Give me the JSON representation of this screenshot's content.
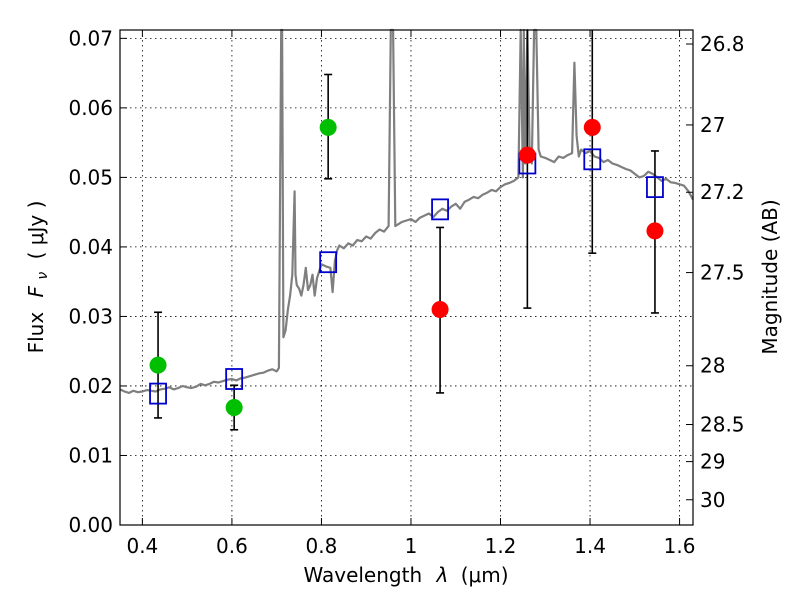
{
  "chart_data": {
    "type": "scatter",
    "xlabel": "Wavelength",
    "xlabel_symbol": "λ",
    "xlabel_unit": "(μm)",
    "ylabel": "Flux",
    "ylabel_symbol": "F",
    "ylabel_symbol_sub": "ν",
    "ylabel_unit": "( μJy )",
    "y2label": "Magnitude (AB)",
    "xlim": [
      0.35,
      1.63
    ],
    "ylim": [
      0.0,
      0.0712
    ],
    "grid": true,
    "x_ticks": [
      {
        "value": 0.4,
        "label": "0.4"
      },
      {
        "value": 0.6,
        "label": "0.6"
      },
      {
        "value": 0.8,
        "label": "0.8"
      },
      {
        "value": 1.0,
        "label": "1"
      },
      {
        "value": 1.2,
        "label": "1.2"
      },
      {
        "value": 1.4,
        "label": "1.4"
      },
      {
        "value": 1.6,
        "label": "1.6"
      }
    ],
    "y_ticks": [
      {
        "value": 0.0,
        "label": "0.00"
      },
      {
        "value": 0.01,
        "label": "0.01"
      },
      {
        "value": 0.02,
        "label": "0.02"
      },
      {
        "value": 0.03,
        "label": "0.03"
      },
      {
        "value": 0.04,
        "label": "0.04"
      },
      {
        "value": 0.05,
        "label": "0.05"
      },
      {
        "value": 0.06,
        "label": "0.06"
      },
      {
        "value": 0.07,
        "label": "0.07"
      }
    ],
    "magnitude_ticks": [
      {
        "value": 26.8,
        "label": "26.8"
      },
      {
        "value": 27.0,
        "label": "27"
      },
      {
        "value": 27.2,
        "label": "27.2"
      },
      {
        "value": 27.5,
        "label": "27.5"
      },
      {
        "value": 28.0,
        "label": "28"
      },
      {
        "value": 28.5,
        "label": "28.5"
      },
      {
        "value": 29.0,
        "label": "29"
      },
      {
        "value": 30.0,
        "label": "30"
      }
    ],
    "series": [
      {
        "type": "line",
        "color": "#7f7f7f",
        "x": [
          0.35,
          0.36,
          0.37,
          0.38,
          0.39,
          0.4,
          0.41,
          0.42,
          0.43,
          0.44,
          0.45,
          0.46,
          0.47,
          0.48,
          0.49,
          0.5,
          0.51,
          0.52,
          0.53,
          0.54,
          0.55,
          0.56,
          0.57,
          0.58,
          0.59,
          0.6,
          0.61,
          0.62,
          0.63,
          0.64,
          0.65,
          0.66,
          0.67,
          0.68,
          0.69,
          0.7,
          0.705,
          0.71,
          0.712,
          0.715,
          0.72,
          0.725,
          0.73,
          0.735,
          0.74,
          0.742,
          0.745,
          0.75,
          0.755,
          0.76,
          0.765,
          0.77,
          0.775,
          0.78,
          0.785,
          0.79,
          0.8,
          0.81,
          0.82,
          0.825,
          0.83,
          0.835,
          0.84,
          0.85,
          0.86,
          0.87,
          0.88,
          0.89,
          0.9,
          0.91,
          0.92,
          0.93,
          0.94,
          0.95,
          0.955,
          0.96,
          0.965,
          0.97,
          0.98,
          0.99,
          1.0,
          1.01,
          1.02,
          1.03,
          1.04,
          1.05,
          1.06,
          1.07,
          1.08,
          1.09,
          1.1,
          1.11,
          1.12,
          1.13,
          1.14,
          1.15,
          1.16,
          1.17,
          1.18,
          1.19,
          1.2,
          1.21,
          1.22,
          1.23,
          1.24,
          1.245,
          1.25,
          1.252,
          1.255,
          1.26,
          1.265,
          1.27,
          1.275,
          1.28,
          1.285,
          1.29,
          1.3,
          1.31,
          1.32,
          1.33,
          1.34,
          1.35,
          1.36,
          1.365,
          1.37,
          1.375,
          1.38,
          1.39,
          1.4,
          1.41,
          1.42,
          1.43,
          1.44,
          1.45,
          1.46,
          1.47,
          1.48,
          1.49,
          1.5,
          1.51,
          1.52,
          1.53,
          1.54,
          1.55,
          1.56,
          1.57,
          1.58,
          1.59,
          1.6,
          1.61,
          1.62,
          1.63
        ],
        "y": [
          0.0195,
          0.0192,
          0.019,
          0.0193,
          0.0191,
          0.0192,
          0.0194,
          0.0193,
          0.0192,
          0.0195,
          0.0196,
          0.0198,
          0.0195,
          0.0197,
          0.02,
          0.0198,
          0.0197,
          0.0199,
          0.0203,
          0.0201,
          0.0203,
          0.0206,
          0.0205,
          0.0207,
          0.0209,
          0.021,
          0.0208,
          0.0211,
          0.0212,
          0.0214,
          0.0216,
          0.0218,
          0.0219,
          0.0222,
          0.0224,
          0.0221,
          0.0226,
          0.0712,
          0.0712,
          0.027,
          0.028,
          0.031,
          0.033,
          0.036,
          0.048,
          0.036,
          0.0345,
          0.034,
          0.033,
          0.0345,
          0.037,
          0.0338,
          0.0345,
          0.036,
          0.033,
          0.0355,
          0.0375,
          0.0372,
          0.037,
          0.0335,
          0.038,
          0.0395,
          0.0402,
          0.0398,
          0.0405,
          0.0402,
          0.041,
          0.0408,
          0.0415,
          0.0412,
          0.042,
          0.0425,
          0.0422,
          0.043,
          0.0712,
          0.0712,
          0.043,
          0.0432,
          0.0436,
          0.0438,
          0.044,
          0.0436,
          0.0442,
          0.0445,
          0.0448,
          0.0443,
          0.045,
          0.0455,
          0.0452,
          0.0458,
          0.0462,
          0.0455,
          0.0465,
          0.0468,
          0.0472,
          0.047,
          0.0475,
          0.0478,
          0.0482,
          0.048,
          0.0486,
          0.049,
          0.0492,
          0.0495,
          0.05,
          0.0712,
          0.05,
          0.0712,
          0.052,
          0.0712,
          0.054,
          0.052,
          0.0712,
          0.0712,
          0.054,
          0.053,
          0.0528,
          0.0525,
          0.0522,
          0.053,
          0.0528,
          0.0532,
          0.0535,
          0.0665,
          0.056,
          0.053,
          0.054,
          0.0535,
          0.0538,
          0.053,
          0.0528,
          0.0522,
          0.0525,
          0.052,
          0.0518,
          0.0515,
          0.0512,
          0.051,
          0.0505,
          0.05,
          0.0502,
          0.0508,
          0.0505,
          0.05,
          0.0495,
          0.0498,
          0.0493,
          0.0492,
          0.049,
          0.0488,
          0.048,
          0.0468
        ]
      },
      {
        "type": "box",
        "color": "#0000cc",
        "x": [
          0.435,
          0.605,
          0.815,
          1.065,
          1.26,
          1.405,
          1.545
        ],
        "y": [
          0.0189,
          0.021,
          0.0378,
          0.0454,
          0.052,
          0.0526,
          0.0486
        ]
      },
      {
        "type": "point",
        "color": "#00bf00",
        "x": [
          0.435,
          0.605,
          0.815
        ],
        "y": [
          0.023,
          0.0169,
          0.0572
        ],
        "yerr_low": [
          0.0154,
          0.0137,
          0.0498
        ],
        "yerr_high": [
          0.0306,
          0.0201,
          0.0648
        ]
      },
      {
        "type": "point",
        "color": "#ff0000",
        "x": [
          1.065,
          1.26,
          1.405,
          1.545
        ],
        "y": [
          0.031,
          0.0532,
          0.0572,
          0.0423
        ],
        "yerr_low": [
          0.019,
          0.0312,
          0.0391,
          0.0305
        ],
        "yerr_high": [
          0.0428,
          0.0712,
          0.0712,
          0.0538
        ]
      }
    ]
  }
}
